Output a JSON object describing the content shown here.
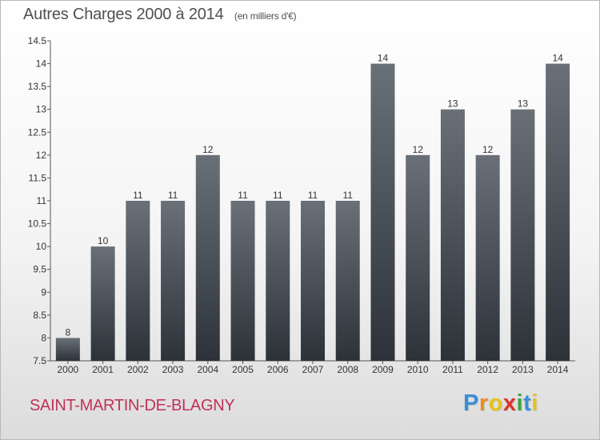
{
  "header": {
    "title": "Autres Charges 2000 à 2014",
    "subtitle": "(en milliers d'€)"
  },
  "footer": {
    "place": "SAINT-MARTIN-DE-BLAGNY",
    "logo_letters": [
      "P",
      "r",
      "o",
      "x",
      "i",
      "t",
      "i"
    ],
    "logo_colors": [
      "#3a8fd6",
      "#f08a1c",
      "#e8c21a",
      "#d8332b",
      "#3fa33a",
      "#3a8fd6",
      "#e8c21a"
    ]
  },
  "colors": {
    "bar_top": "#6a7078",
    "bar_bottom": "#2c3238",
    "axis": "#555555",
    "text": "#333333",
    "title": "#505050",
    "place": "#c0315a"
  },
  "chart_data": {
    "type": "bar",
    "title": "Autres Charges 2000 à 2014",
    "subtitle": "(en milliers d'€)",
    "categories": [
      "2000",
      "2001",
      "2002",
      "2003",
      "2004",
      "2005",
      "2006",
      "2007",
      "2008",
      "2009",
      "2010",
      "2011",
      "2012",
      "2013",
      "2014"
    ],
    "values": [
      8,
      10,
      11,
      11,
      12,
      11,
      11,
      11,
      11,
      14,
      12,
      13,
      12,
      13,
      14
    ],
    "data_labels": [
      "8",
      "10",
      "11",
      "11",
      "12",
      "11",
      "11",
      "11",
      "11",
      "14",
      "12",
      "13",
      "12",
      "13",
      "14"
    ],
    "ylim": [
      7.5,
      14.5
    ],
    "yticks": [
      7.5,
      8,
      8.5,
      9,
      9.5,
      10,
      10.5,
      11,
      11.5,
      12,
      12.5,
      13,
      13.5,
      14,
      14.5
    ],
    "ytick_labels": [
      "7.5",
      "8",
      "8.5",
      "9",
      "9.5",
      "10",
      "10.5",
      "11",
      "11.5",
      "12",
      "12.5",
      "13",
      "13.5",
      "14",
      "14.5"
    ],
    "grid": false,
    "xlabel": "",
    "ylabel": ""
  }
}
